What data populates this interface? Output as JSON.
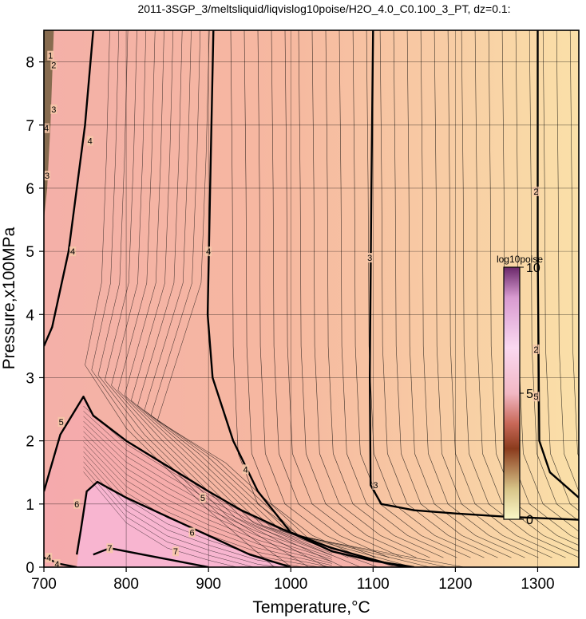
{
  "chart_data": {
    "type": "heatmap",
    "title": "2011-3SGP_3/meltsliquid/liqvislog10poise/H2O_4.0_C0.100_3_PT, dz=0.1:",
    "xlabel": "Temperature,°C",
    "ylabel": "Pressure,x100MPa",
    "xlim": [
      700,
      1350
    ],
    "ylim": [
      0,
      8.5
    ],
    "x_ticks": [
      700,
      800,
      900,
      1000,
      1100,
      1200,
      1300
    ],
    "y_ticks": [
      0,
      1,
      2,
      3,
      4,
      5,
      6,
      7,
      8
    ],
    "grid": true,
    "colorbar": {
      "title": "log10poise",
      "range": [
        0,
        10
      ],
      "ticks": [
        "10",
        "5",
        "0"
      ],
      "colors": [
        "#fbf7c4",
        "#8a2f1d",
        "#f8c8e8",
        "#e0a8d8",
        "#6a2a6a"
      ]
    },
    "contour_labels": [
      "1",
      "2",
      "3",
      "4",
      "5",
      "6",
      "7"
    ],
    "major_contours": [
      {
        "level": "2",
        "points": [
          [
            1300,
            8.5
          ],
          [
            1300,
            5.0
          ],
          [
            1302,
            2.0
          ],
          [
            1315,
            1.5
          ],
          [
            1350,
            1.1
          ]
        ]
      },
      {
        "level": "3",
        "points": [
          [
            1100,
            8.5
          ],
          [
            1098,
            6.0
          ],
          [
            1096,
            3.0
          ],
          [
            1097,
            1.3
          ],
          [
            1110,
            1.0
          ],
          [
            1150,
            0.9
          ],
          [
            1200,
            0.85
          ],
          [
            1260,
            0.8
          ],
          [
            1350,
            0.75
          ]
        ]
      },
      {
        "level": "4",
        "points": [
          [
            906,
            8.5
          ],
          [
            902,
            6.0
          ],
          [
            899,
            4.0
          ],
          [
            905,
            3.0
          ],
          [
            930,
            2.0
          ],
          [
            960,
            1.2
          ],
          [
            1000,
            0.55
          ],
          [
            1050,
            0.25
          ],
          [
            1100,
            0.1
          ],
          [
            1150,
            0.0
          ]
        ]
      },
      {
        "level": "4",
        "points": [
          [
            760,
            8.5
          ],
          [
            750,
            7.0
          ],
          [
            730,
            5.0
          ],
          [
            710,
            3.8
          ],
          [
            700,
            3.5
          ]
        ]
      },
      {
        "level": "5",
        "points": [
          [
            700,
            1.2
          ],
          [
            720,
            2.1
          ],
          [
            748,
            2.7
          ],
          [
            760,
            2.4
          ],
          [
            800,
            2.0
          ],
          [
            850,
            1.6
          ],
          [
            900,
            1.2
          ],
          [
            940,
            0.9
          ],
          [
            990,
            0.6
          ],
          [
            1050,
            0.3
          ],
          [
            1120,
            0.05
          ],
          [
            1140,
            0.0
          ]
        ]
      },
      {
        "level": "6",
        "points": [
          [
            740,
            0.2
          ],
          [
            745,
            0.6
          ],
          [
            752,
            1.2
          ],
          [
            765,
            1.35
          ],
          [
            800,
            1.1
          ],
          [
            850,
            0.8
          ],
          [
            900,
            0.5
          ],
          [
            950,
            0.2
          ],
          [
            1000,
            0.0
          ]
        ]
      },
      {
        "level": "7",
        "points": [
          [
            760,
            0.2
          ],
          [
            780,
            0.3
          ],
          [
            820,
            0.2
          ],
          [
            860,
            0.1
          ],
          [
            900,
            0.0
          ]
        ]
      },
      {
        "level": "4",
        "points": [
          [
            700,
            0.15
          ],
          [
            720,
            0.05
          ],
          [
            740,
            0.0
          ]
        ]
      }
    ],
    "label_points": [
      {
        "text": "1",
        "t": 708,
        "p": 8.1
      },
      {
        "text": "2",
        "t": 712,
        "p": 7.95
      },
      {
        "text": "3",
        "t": 712,
        "p": 7.25
      },
      {
        "text": "4",
        "t": 703,
        "p": 6.95
      },
      {
        "text": "3",
        "t": 704,
        "p": 6.2
      },
      {
        "text": "4",
        "t": 735,
        "p": 5.0
      },
      {
        "text": "4",
        "t": 756,
        "p": 6.75
      },
      {
        "text": "4",
        "t": 900,
        "p": 5.0
      },
      {
        "text": "3",
        "t": 1096,
        "p": 4.9
      },
      {
        "text": "2",
        "t": 1298,
        "p": 5.95
      },
      {
        "text": "2",
        "t": 1298,
        "p": 3.45
      },
      {
        "text": "5",
        "t": 1298,
        "p": 2.7
      },
      {
        "text": "5",
        "t": 721,
        "p": 2.3
      },
      {
        "text": "4",
        "t": 945,
        "p": 1.55
      },
      {
        "text": "5",
        "t": 893,
        "p": 1.1
      },
      {
        "text": "6",
        "t": 740,
        "p": 1.0
      },
      {
        "text": "6",
        "t": 880,
        "p": 0.55
      },
      {
        "text": "3",
        "t": 1103,
        "p": 1.3
      },
      {
        "text": "7",
        "t": 780,
        "p": 0.3
      },
      {
        "text": "7",
        "t": 860,
        "p": 0.25
      },
      {
        "text": "4",
        "t": 706,
        "p": 0.15
      },
      {
        "text": "4",
        "t": 716,
        "p": 0.05
      }
    ]
  }
}
